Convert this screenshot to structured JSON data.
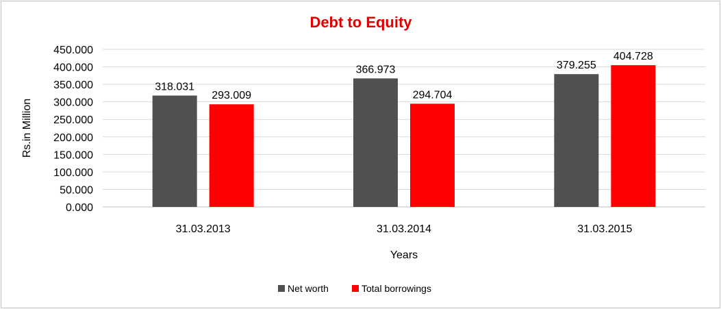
{
  "chart_data": {
    "type": "bar",
    "title": "Debt to Equity",
    "title_color": "#e00000",
    "xlabel": "Years",
    "ylabel": "Rs.in Million",
    "categories": [
      "31.03.2013",
      "31.03.2014",
      "31.03.2015"
    ],
    "series": [
      {
        "name": "Net worth",
        "color": "#505050",
        "values": [
          318.031,
          366.973,
          379.255
        ]
      },
      {
        "name": "Total borrowings",
        "color": "#ff0000",
        "values": [
          293.009,
          294.704,
          404.728
        ]
      }
    ],
    "ylim": [
      0,
      450
    ],
    "yticks": [
      "0.000",
      "50.000",
      "100.000",
      "150.000",
      "200.000",
      "250.000",
      "300.000",
      "350.000",
      "400.000",
      "450.000"
    ],
    "ytick_values": [
      0,
      50,
      100,
      150,
      200,
      250,
      300,
      350,
      400,
      450
    ],
    "data_labels": [
      [
        "318.031",
        "366.973",
        "379.255"
      ],
      [
        "293.009",
        "294.704",
        "404.728"
      ]
    ],
    "grid": true,
    "legend_position": "bottom"
  }
}
